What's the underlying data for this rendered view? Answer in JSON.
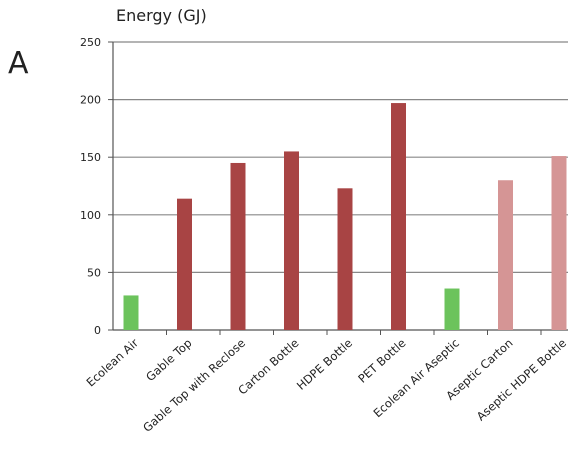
{
  "panel_label": "A",
  "chart_data": {
    "type": "bar",
    "title": "Energy (GJ)",
    "xlabel": "",
    "ylabel": "",
    "ylim": [
      0,
      250
    ],
    "yticks": [
      0,
      50,
      100,
      150,
      200,
      250
    ],
    "grid": true,
    "categories": [
      "Ecolean Air",
      "Gable Top",
      "Gable Top with Reclose",
      "Carton Bottle",
      "HDPE Bottle",
      "PET Bottle",
      "Ecolean Air Aseptic",
      "Aseptic Carton",
      "Aseptic HDPE Bottle"
    ],
    "values": [
      30,
      114,
      145,
      155,
      123,
      197,
      36,
      130,
      151
    ],
    "colors": [
      "#6cc35c",
      "#a84444",
      "#a84444",
      "#a84444",
      "#a84444",
      "#a84444",
      "#6cc35c",
      "#d59595",
      "#d59595"
    ],
    "axis_color": "#555555",
    "grid_color": "#888888"
  }
}
